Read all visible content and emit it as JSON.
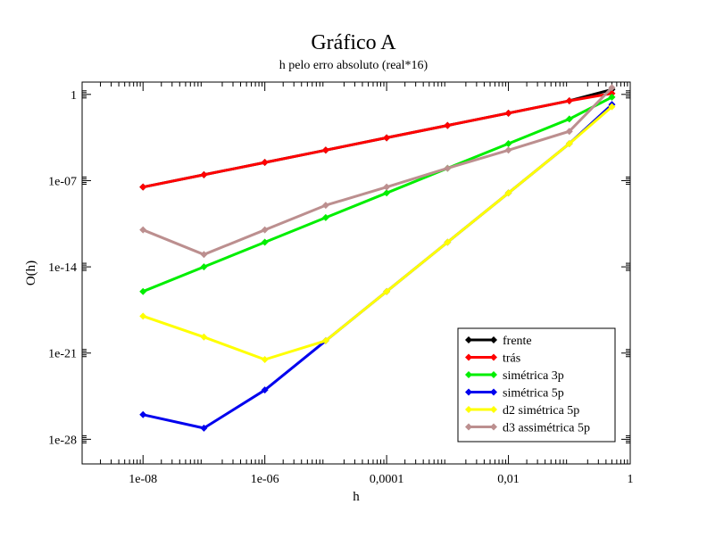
{
  "chart_data": {
    "type": "line",
    "title": "Gráfico A",
    "subtitle": "h pelo erro absoluto (real*16)",
    "xlabel": "h",
    "ylabel": "O(h)",
    "xscale": "log",
    "yscale": "log",
    "xlim": [
      1e-09,
      1
    ],
    "ylim": [
      1e-30,
      10
    ],
    "x_ticks": [
      {
        "value": 1e-08,
        "label": "1e-08"
      },
      {
        "value": 1e-06,
        "label": "1e-06"
      },
      {
        "value": 0.0001,
        "label": "0,0001"
      },
      {
        "value": 0.01,
        "label": "0,01"
      },
      {
        "value": 1,
        "label": "1"
      }
    ],
    "y_ticks": [
      {
        "value": 1,
        "label": "1"
      },
      {
        "value": 1e-07,
        "label": "1e-07"
      },
      {
        "value": 1e-14,
        "label": "1e-14"
      },
      {
        "value": 1e-21,
        "label": "1e-21"
      },
      {
        "value": 1e-28,
        "label": "1e-28"
      }
    ],
    "legend_position": "bottom-right",
    "series": [
      {
        "name": "frente",
        "color": "#000000",
        "x": [
          1e-08,
          1e-07,
          1e-06,
          1e-05,
          0.0001,
          0.001,
          0.01,
          0.1,
          0.5
        ],
        "y": [
          3e-08,
          3e-07,
          3e-06,
          3e-05,
          0.0003,
          0.003,
          0.03,
          0.3,
          2.5
        ]
      },
      {
        "name": "trás",
        "color": "#ff0000",
        "x": [
          1e-08,
          1e-07,
          1e-06,
          1e-05,
          0.0001,
          0.001,
          0.01,
          0.1,
          0.5
        ],
        "y": [
          3e-08,
          3e-07,
          3e-06,
          3e-05,
          0.0003,
          0.003,
          0.03,
          0.3,
          1.2
        ]
      },
      {
        "name": "simétrica 3p",
        "color": "#00ee00",
        "x": [
          1e-08,
          1e-07,
          1e-06,
          1e-05,
          0.0001,
          0.001,
          0.01,
          0.1,
          0.5
        ],
        "y": [
          1e-16,
          1e-14,
          1e-12,
          1e-10,
          1e-08,
          1e-06,
          0.0001,
          0.01,
          0.6
        ]
      },
      {
        "name": "simétrica 5p",
        "color": "#0000ee",
        "x": [
          1e-08,
          1e-07,
          1e-06,
          1e-05,
          0.0001,
          0.001,
          0.01,
          0.1,
          0.5
        ],
        "y": [
          1e-26,
          8e-28,
          1e-24,
          1e-20,
          1e-16,
          1e-12,
          1e-08,
          0.0001,
          0.15
        ]
      },
      {
        "name": "d2 simétrica 5p",
        "color": "#ffff00",
        "x": [
          1e-08,
          1e-07,
          1e-06,
          1e-05,
          0.0001,
          0.001,
          0.01,
          0.1,
          0.5
        ],
        "y": [
          1e-18,
          2e-20,
          3e-22,
          1e-20,
          1e-16,
          1e-12,
          1e-08,
          0.0001,
          0.1
        ]
      },
      {
        "name": "d3 assimétrica 5p",
        "color": "#bc8f8f",
        "x": [
          1e-08,
          1e-07,
          1e-06,
          1e-05,
          0.0001,
          0.001,
          0.01,
          0.1,
          0.5
        ],
        "y": [
          1e-11,
          1e-13,
          1e-11,
          1e-09,
          3e-08,
          1e-06,
          3e-05,
          0.001,
          3.5
        ]
      }
    ]
  }
}
